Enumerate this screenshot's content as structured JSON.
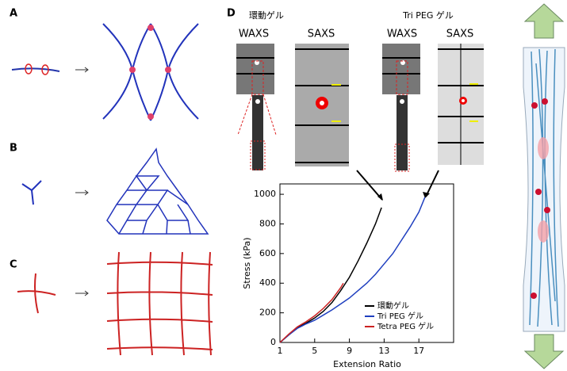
{
  "panel_labels": [
    "A",
    "B",
    "C",
    "D"
  ],
  "images": [
    {
      "title": "環動ゲル",
      "waxs": "WAXS",
      "saxs": "SAXS"
    },
    {
      "title": "Tri PEG ゲル",
      "waxs": "WAXS",
      "saxs": "SAXS"
    }
  ],
  "chart_data": {
    "type": "line",
    "xlabel": "Extension Ratio",
    "ylabel": "Stress (kPa)",
    "xlim": [
      1,
      21
    ],
    "ylim": [
      0,
      1070
    ],
    "xticks": [
      1,
      5,
      9,
      13,
      17
    ],
    "yticks": [
      0,
      200,
      400,
      600,
      800,
      1000
    ],
    "grid": false,
    "legend": "lower right",
    "series": [
      {
        "name": "環動ゲル",
        "color": "#000000",
        "x": [
          1,
          2,
          3,
          4,
          5,
          6,
          7,
          8,
          9,
          10,
          11,
          12,
          12.7
        ],
        "values": [
          0,
          50,
          100,
          130,
          165,
          210,
          270,
          350,
          440,
          550,
          670,
          800,
          910
        ]
      },
      {
        "name": "Tri PEG ゲル",
        "color": "#1f3fbf",
        "x": [
          1,
          2,
          3,
          4,
          5,
          6,
          7,
          8,
          9,
          10,
          11,
          12,
          13,
          14,
          15,
          16,
          17,
          17.7
        ],
        "values": [
          0,
          50,
          95,
          125,
          150,
          185,
          220,
          260,
          300,
          350,
          400,
          460,
          530,
          600,
          690,
          780,
          880,
          980
        ]
      },
      {
        "name": "Tetra PEG ゲル",
        "color": "#cc2222",
        "x": [
          1,
          2,
          3,
          4,
          5,
          6,
          7,
          8,
          8.3
        ],
        "values": [
          0,
          55,
          105,
          140,
          180,
          230,
          290,
          370,
          400
        ]
      }
    ]
  }
}
